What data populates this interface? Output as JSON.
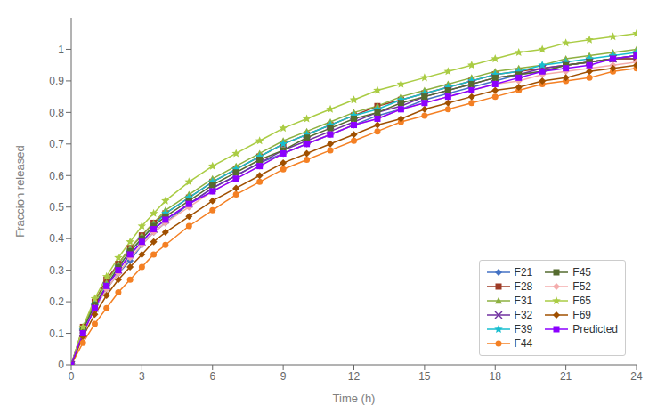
{
  "chart_data": {
    "type": "line",
    "xlabel": "Time (h)",
    "ylabel": "Fraccion released",
    "x": [
      0,
      0.5,
      1,
      1.5,
      2,
      2.5,
      3,
      3.5,
      4,
      5,
      6,
      7,
      8,
      9,
      10,
      11,
      12,
      13,
      14,
      15,
      16,
      17,
      18,
      19,
      20,
      21,
      22,
      23,
      24
    ],
    "series": [
      {
        "name": "F21",
        "color": "#4472C4",
        "marker": "diamond",
        "values": [
          0,
          0.1,
          0.18,
          0.24,
          0.29,
          0.33,
          0.38,
          0.42,
          0.45,
          0.51,
          0.56,
          0.6,
          0.64,
          0.67,
          0.7,
          0.73,
          0.76,
          0.79,
          0.81,
          0.84,
          0.86,
          0.88,
          0.9,
          0.92,
          0.93,
          0.95,
          0.96,
          0.97,
          0.97
        ]
      },
      {
        "name": "F28",
        "color": "#9E3B26",
        "marker": "square",
        "values": [
          0,
          0.12,
          0.2,
          0.27,
          0.32,
          0.37,
          0.41,
          0.45,
          0.48,
          0.53,
          0.58,
          0.62,
          0.66,
          0.7,
          0.73,
          0.76,
          0.79,
          0.82,
          0.84,
          0.86,
          0.88,
          0.9,
          0.92,
          0.93,
          0.94,
          0.95,
          0.96,
          0.97,
          0.97
        ]
      },
      {
        "name": "F31",
        "color": "#8DB040",
        "marker": "triangle",
        "values": [
          0,
          0.11,
          0.2,
          0.26,
          0.32,
          0.37,
          0.41,
          0.45,
          0.49,
          0.54,
          0.59,
          0.63,
          0.67,
          0.71,
          0.74,
          0.77,
          0.8,
          0.82,
          0.85,
          0.87,
          0.89,
          0.91,
          0.93,
          0.94,
          0.95,
          0.97,
          0.98,
          0.99,
          1.0
        ]
      },
      {
        "name": "F32",
        "color": "#7030A0",
        "marker": "x",
        "values": [
          0,
          0.1,
          0.18,
          0.25,
          0.3,
          0.35,
          0.39,
          0.43,
          0.46,
          0.51,
          0.56,
          0.6,
          0.64,
          0.68,
          0.71,
          0.74,
          0.77,
          0.8,
          0.82,
          0.85,
          0.87,
          0.89,
          0.91,
          0.92,
          0.94,
          0.95,
          0.96,
          0.97,
          0.98
        ]
      },
      {
        "name": "F39",
        "color": "#17BECF",
        "marker": "star",
        "values": [
          0,
          0.11,
          0.19,
          0.25,
          0.31,
          0.36,
          0.4,
          0.44,
          0.48,
          0.53,
          0.58,
          0.62,
          0.66,
          0.7,
          0.73,
          0.76,
          0.79,
          0.81,
          0.84,
          0.86,
          0.88,
          0.9,
          0.92,
          0.93,
          0.95,
          0.96,
          0.97,
          0.98,
          0.99
        ]
      },
      {
        "name": "F44",
        "color": "#F48024",
        "marker": "circle",
        "values": [
          0,
          0.07,
          0.13,
          0.18,
          0.23,
          0.27,
          0.31,
          0.35,
          0.38,
          0.44,
          0.49,
          0.54,
          0.58,
          0.62,
          0.65,
          0.68,
          0.71,
          0.74,
          0.77,
          0.79,
          0.81,
          0.83,
          0.85,
          0.87,
          0.89,
          0.9,
          0.91,
          0.93,
          0.94
        ]
      },
      {
        "name": "F45",
        "color": "#556B2F",
        "marker": "square",
        "values": [
          0,
          0.11,
          0.19,
          0.25,
          0.31,
          0.36,
          0.4,
          0.44,
          0.47,
          0.52,
          0.57,
          0.61,
          0.65,
          0.68,
          0.72,
          0.75,
          0.78,
          0.8,
          0.83,
          0.85,
          0.87,
          0.89,
          0.91,
          0.92,
          0.93,
          0.95,
          0.96,
          0.97,
          0.98
        ]
      },
      {
        "name": "F52",
        "color": "#F4ACAC",
        "marker": "diamond",
        "values": [
          0,
          0.1,
          0.18,
          0.24,
          0.29,
          0.34,
          0.38,
          0.42,
          0.45,
          0.5,
          0.55,
          0.59,
          0.63,
          0.67,
          0.7,
          0.73,
          0.76,
          0.78,
          0.81,
          0.83,
          0.85,
          0.87,
          0.89,
          0.9,
          0.92,
          0.93,
          0.94,
          0.95,
          0.96
        ]
      },
      {
        "name": "F65",
        "color": "#AACC44",
        "marker": "star",
        "values": [
          0,
          0.12,
          0.21,
          0.28,
          0.34,
          0.39,
          0.44,
          0.48,
          0.52,
          0.58,
          0.63,
          0.67,
          0.71,
          0.75,
          0.78,
          0.81,
          0.84,
          0.87,
          0.89,
          0.91,
          0.93,
          0.95,
          0.97,
          0.99,
          1.0,
          1.02,
          1.03,
          1.04,
          1.05
        ]
      },
      {
        "name": "F69",
        "color": "#A05000",
        "marker": "diamond",
        "values": [
          0,
          0.09,
          0.16,
          0.22,
          0.27,
          0.31,
          0.35,
          0.39,
          0.42,
          0.47,
          0.52,
          0.56,
          0.6,
          0.64,
          0.67,
          0.7,
          0.73,
          0.76,
          0.78,
          0.81,
          0.83,
          0.85,
          0.87,
          0.88,
          0.9,
          0.91,
          0.93,
          0.94,
          0.95
        ]
      },
      {
        "name": "Predicted",
        "color": "#8B00FF",
        "marker": "square",
        "values": [
          0,
          0.1,
          0.18,
          0.25,
          0.3,
          0.35,
          0.39,
          0.43,
          0.46,
          0.51,
          0.55,
          0.59,
          0.63,
          0.67,
          0.7,
          0.73,
          0.76,
          0.78,
          0.81,
          0.83,
          0.85,
          0.87,
          0.89,
          0.91,
          0.93,
          0.94,
          0.95,
          0.97,
          0.98
        ]
      }
    ],
    "xlim": [
      0,
      24
    ],
    "xticks": [
      0,
      3,
      6,
      9,
      12,
      15,
      18,
      21,
      24
    ],
    "ylim": [
      0,
      1.1
    ],
    "yticks": [
      0,
      0.1,
      0.2,
      0.3,
      0.4,
      0.5,
      0.6,
      0.7,
      0.8,
      0.9,
      1.0
    ],
    "grid": false,
    "legend": "lower right"
  }
}
